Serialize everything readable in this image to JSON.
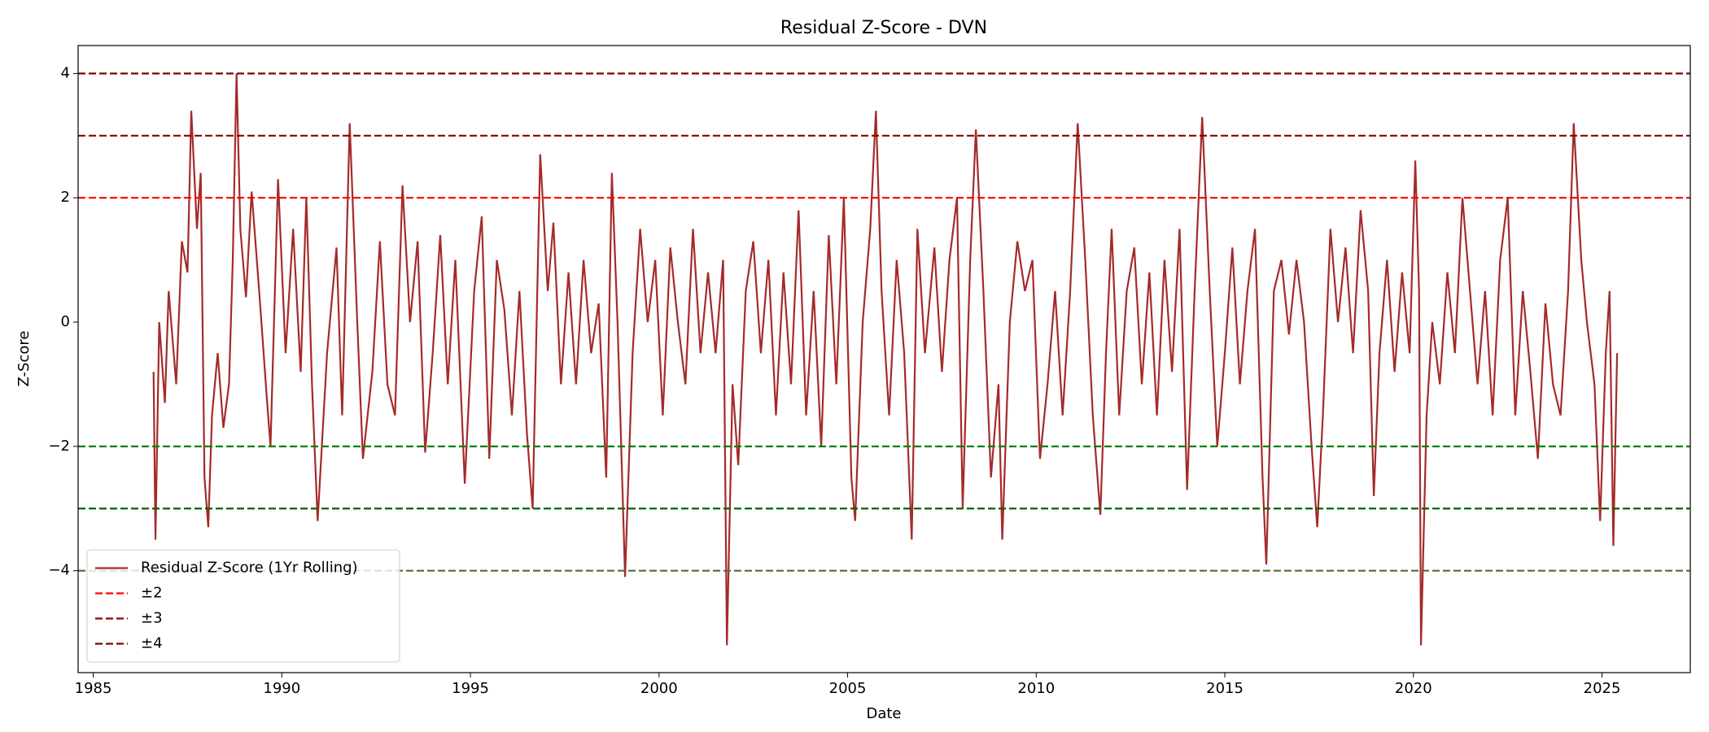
{
  "chart_data": {
    "type": "line",
    "title": "Residual Z-Score - DVN",
    "x_label": "Date",
    "y_label": "Z-Score",
    "x": [
      1986.6,
      1986.65,
      1986.75,
      1986.9,
      1987.0,
      1987.2,
      1987.35,
      1987.5,
      1987.6,
      1987.75,
      1987.85,
      1987.95,
      1988.05,
      1988.15,
      1988.3,
      1988.45,
      1988.6,
      1988.7,
      1988.8,
      1988.9,
      1989.05,
      1989.2,
      1989.4,
      1989.6,
      1989.7,
      1989.9,
      1990.1,
      1990.3,
      1990.5,
      1990.65,
      1990.8,
      1990.95,
      1991.2,
      1991.45,
      1991.6,
      1991.8,
      1992.0,
      1992.15,
      1992.4,
      1992.6,
      1992.8,
      1993.0,
      1993.2,
      1993.4,
      1993.6,
      1993.8,
      1994.0,
      1994.2,
      1994.4,
      1994.6,
      1994.85,
      1995.1,
      1995.3,
      1995.5,
      1995.7,
      1995.9,
      1996.1,
      1996.3,
      1996.5,
      1996.65,
      1996.85,
      1997.05,
      1997.2,
      1997.4,
      1997.6,
      1997.8,
      1998.0,
      1998.2,
      1998.4,
      1998.6,
      1998.75,
      1998.9,
      1999.1,
      1999.3,
      1999.5,
      1999.7,
      1999.9,
      2000.1,
      2000.3,
      2000.5,
      2000.7,
      2000.9,
      2001.1,
      2001.3,
      2001.5,
      2001.7,
      2001.8,
      2001.95,
      2002.1,
      2002.3,
      2002.5,
      2002.7,
      2002.9,
      2003.1,
      2003.3,
      2003.5,
      2003.7,
      2003.9,
      2004.1,
      2004.3,
      2004.5,
      2004.7,
      2004.9,
      2005.1,
      2005.2,
      2005.4,
      2005.6,
      2005.75,
      2005.9,
      2006.1,
      2006.3,
      2006.5,
      2006.7,
      2006.85,
      2007.05,
      2007.3,
      2007.5,
      2007.7,
      2007.9,
      2008.05,
      2008.25,
      2008.4,
      2008.6,
      2008.8,
      2009.0,
      2009.1,
      2009.3,
      2009.5,
      2009.7,
      2009.9,
      2010.1,
      2010.3,
      2010.5,
      2010.7,
      2010.9,
      2011.1,
      2011.3,
      2011.5,
      2011.7,
      2011.85,
      2012.0,
      2012.2,
      2012.4,
      2012.6,
      2012.8,
      2013.0,
      2013.2,
      2013.4,
      2013.6,
      2013.8,
      2014.0,
      2014.2,
      2014.4,
      2014.6,
      2014.8,
      2015.0,
      2015.2,
      2015.4,
      2015.6,
      2015.8,
      2016.0,
      2016.1,
      2016.3,
      2016.5,
      2016.7,
      2016.9,
      2017.1,
      2017.3,
      2017.45,
      2017.6,
      2017.8,
      2018.0,
      2018.2,
      2018.4,
      2018.6,
      2018.8,
      2018.95,
      2019.1,
      2019.3,
      2019.5,
      2019.7,
      2019.9,
      2020.05,
      2020.15,
      2020.2,
      2020.35,
      2020.5,
      2020.7,
      2020.9,
      2021.1,
      2021.3,
      2021.5,
      2021.7,
      2021.9,
      2022.1,
      2022.3,
      2022.5,
      2022.7,
      2022.9,
      2023.1,
      2023.3,
      2023.5,
      2023.7,
      2023.9,
      2024.1,
      2024.25,
      2024.45,
      2024.6,
      2024.8,
      2024.95,
      2025.1,
      2025.2,
      2025.3,
      2025.4
    ],
    "series": [
      {
        "name": "Residual Z-Score (1Yr Rolling)",
        "color": "#a52a2a",
        "values": [
          -0.8,
          -3.5,
          0.0,
          -1.3,
          0.5,
          -1.0,
          1.3,
          0.8,
          3.4,
          1.5,
          2.4,
          -2.5,
          -3.3,
          -1.5,
          -0.5,
          -1.7,
          -1.0,
          1.0,
          4.0,
          1.5,
          0.4,
          2.1,
          0.5,
          -1.2,
          -2.0,
          2.3,
          -0.5,
          1.5,
          -0.8,
          2.0,
          -1.0,
          -3.2,
          -0.5,
          1.2,
          -1.5,
          3.2,
          0.0,
          -2.2,
          -0.8,
          1.3,
          -1.0,
          -1.5,
          2.2,
          0.0,
          1.3,
          -2.1,
          -0.5,
          1.4,
          -1.0,
          1.0,
          -2.6,
          0.5,
          1.7,
          -2.2,
          1.0,
          0.2,
          -1.5,
          0.5,
          -1.8,
          -3.0,
          2.7,
          0.5,
          1.6,
          -1.0,
          0.8,
          -1.0,
          1.0,
          -0.5,
          0.3,
          -2.5,
          2.4,
          0.0,
          -4.1,
          -0.5,
          1.5,
          0.0,
          1.0,
          -1.5,
          1.2,
          0.0,
          -1.0,
          1.5,
          -0.5,
          0.8,
          -0.5,
          1.0,
          -5.2,
          -1.0,
          -2.3,
          0.5,
          1.3,
          -0.5,
          1.0,
          -1.5,
          0.8,
          -1.0,
          1.8,
          -1.5,
          0.5,
          -2.0,
          1.4,
          -1.0,
          2.0,
          -2.5,
          -3.2,
          0.0,
          1.5,
          3.4,
          0.5,
          -1.5,
          1.0,
          -0.5,
          -3.5,
          1.5,
          -0.5,
          1.2,
          -0.8,
          1.0,
          2.0,
          -3.0,
          1.0,
          3.1,
          0.5,
          -2.5,
          -1.0,
          -3.5,
          0.0,
          1.3,
          0.5,
          1.0,
          -2.2,
          -1.0,
          0.5,
          -1.5,
          0.5,
          3.2,
          1.0,
          -1.5,
          -3.1,
          -0.5,
          1.5,
          -1.5,
          0.5,
          1.2,
          -1.0,
          0.8,
          -1.5,
          1.0,
          -0.8,
          1.5,
          -2.7,
          0.5,
          3.3,
          0.5,
          -2.0,
          -0.5,
          1.2,
          -1.0,
          0.5,
          1.5,
          -2.5,
          -3.9,
          0.5,
          1.0,
          -0.2,
          1.0,
          0.0,
          -2.0,
          -3.3,
          -1.5,
          1.5,
          0.0,
          1.2,
          -0.5,
          1.8,
          0.5,
          -2.8,
          -0.5,
          1.0,
          -0.8,
          0.8,
          -0.5,
          2.6,
          0.5,
          -5.2,
          -1.5,
          0.0,
          -1.0,
          0.8,
          -0.5,
          2.0,
          0.5,
          -1.0,
          0.5,
          -1.5,
          1.0,
          2.0,
          -1.5,
          0.5,
          -0.8,
          -2.2,
          0.3,
          -1.0,
          -1.5,
          0.5,
          3.2,
          1.0,
          0.0,
          -1.0,
          -3.2,
          -0.5,
          0.5,
          -3.6,
          -0.5
        ]
      }
    ],
    "hlines": [
      {
        "name": "±2",
        "values": [
          2,
          -2
        ],
        "colors": [
          "#ff0000",
          "#008000"
        ]
      },
      {
        "name": "±3",
        "values": [
          3,
          -3
        ],
        "colors": [
          "#8b0000",
          "#006400"
        ]
      },
      {
        "name": "±4",
        "values": [
          4,
          -4
        ],
        "colors": [
          "#800000",
          "#556b2f"
        ]
      }
    ],
    "xlim": [
      1984.6,
      2027.34
    ],
    "xticks": [
      1985,
      1990,
      1995,
      2000,
      2005,
      2010,
      2015,
      2020,
      2025
    ],
    "ylim": [
      -5.64,
      4.45
    ],
    "yticks": [
      {
        "value": -4,
        "label": "−4"
      },
      {
        "value": -2,
        "label": "−2"
      },
      0,
      2,
      4
    ],
    "legend": "lower left"
  }
}
